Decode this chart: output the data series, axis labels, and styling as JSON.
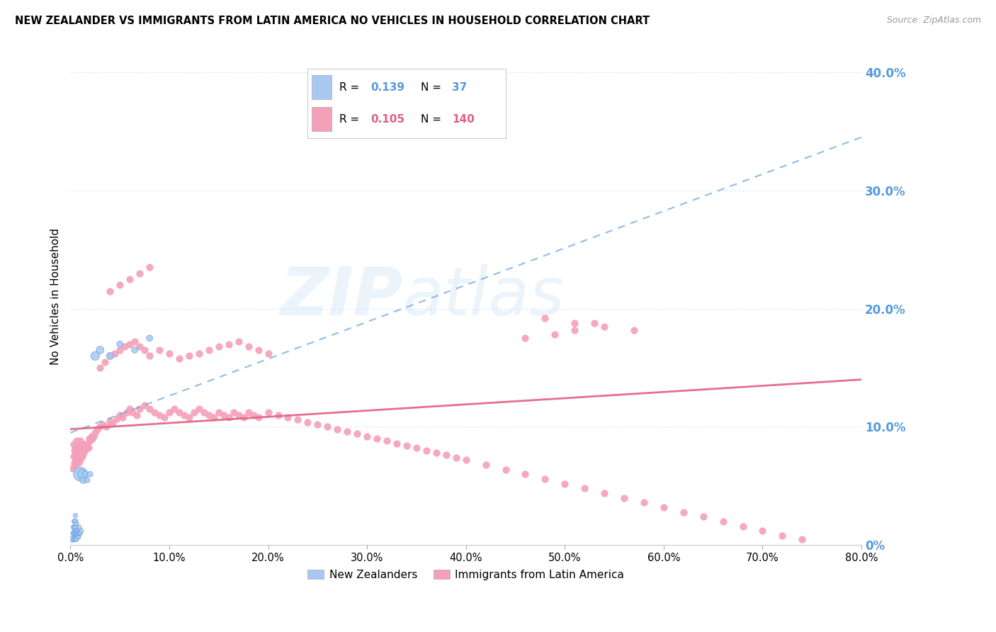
{
  "title": "NEW ZEALANDER VS IMMIGRANTS FROM LATIN AMERICA NO VEHICLES IN HOUSEHOLD CORRELATION CHART",
  "source": "Source: ZipAtlas.com",
  "ylabel": "No Vehicles in Household",
  "ytick_labels": [
    "0%",
    "10.0%",
    "20.0%",
    "30.0%",
    "40.0%"
  ],
  "ytick_values": [
    0.0,
    0.1,
    0.2,
    0.3,
    0.4
  ],
  "xlim": [
    0.0,
    0.8
  ],
  "ylim": [
    0.0,
    0.42
  ],
  "r_nz": 0.139,
  "n_nz": 37,
  "r_la": 0.105,
  "n_la": 140,
  "color_nz": "#a8c8f0",
  "color_la": "#f4a0b8",
  "color_nz_dark": "#5599dd",
  "color_la_dark": "#e06080",
  "color_axis_blue": "#5599dd",
  "background_color": "#ffffff",
  "grid_color": "#ddeeff",
  "watermark_zip": "ZIP",
  "watermark_atlas": "atlas",
  "legend_label_nz": "New Zealanders",
  "legend_label_la": "Immigrants from Latin America",
  "nz_trend_x": [
    0.0,
    0.8
  ],
  "nz_trend_y": [
    0.095,
    0.345
  ],
  "la_trend_x": [
    0.0,
    0.8
  ],
  "la_trend_y": [
    0.098,
    0.14
  ],
  "nz_x": [
    0.002,
    0.003,
    0.003,
    0.004,
    0.004,
    0.004,
    0.004,
    0.005,
    0.005,
    0.005,
    0.005,
    0.005,
    0.005,
    0.006,
    0.006,
    0.006,
    0.006,
    0.007,
    0.007,
    0.008,
    0.008,
    0.009,
    0.009,
    0.01,
    0.01,
    0.011,
    0.012,
    0.013,
    0.015,
    0.017,
    0.02,
    0.025,
    0.03,
    0.04,
    0.05,
    0.065,
    0.08
  ],
  "nz_y": [
    0.005,
    0.01,
    0.015,
    0.005,
    0.01,
    0.015,
    0.02,
    0.005,
    0.01,
    0.012,
    0.015,
    0.02,
    0.025,
    0.005,
    0.008,
    0.012,
    0.018,
    0.008,
    0.012,
    0.007,
    0.01,
    0.01,
    0.015,
    0.01,
    0.06,
    0.012,
    0.06,
    0.055,
    0.06,
    0.055,
    0.06,
    0.16,
    0.165,
    0.16,
    0.17,
    0.165,
    0.175
  ],
  "nz_size": [
    40,
    30,
    25,
    30,
    25,
    20,
    25,
    30,
    25,
    20,
    25,
    30,
    20,
    25,
    20,
    20,
    20,
    20,
    20,
    25,
    25,
    20,
    20,
    20,
    200,
    20,
    100,
    50,
    40,
    30,
    30,
    80,
    60,
    50,
    40,
    40,
    40
  ],
  "la_x": [
    0.002,
    0.003,
    0.003,
    0.004,
    0.004,
    0.005,
    0.005,
    0.005,
    0.006,
    0.006,
    0.006,
    0.007,
    0.007,
    0.008,
    0.008,
    0.008,
    0.009,
    0.009,
    0.01,
    0.01,
    0.01,
    0.011,
    0.011,
    0.012,
    0.012,
    0.013,
    0.013,
    0.014,
    0.015,
    0.016,
    0.017,
    0.018,
    0.019,
    0.02,
    0.021,
    0.022,
    0.023,
    0.025,
    0.027,
    0.03,
    0.033,
    0.036,
    0.04,
    0.043,
    0.047,
    0.05,
    0.053,
    0.057,
    0.06,
    0.063,
    0.067,
    0.07,
    0.075,
    0.08,
    0.085,
    0.09,
    0.095,
    0.1,
    0.105,
    0.11,
    0.115,
    0.12,
    0.125,
    0.13,
    0.135,
    0.14,
    0.145,
    0.15,
    0.155,
    0.16,
    0.165,
    0.17,
    0.175,
    0.18,
    0.185,
    0.19,
    0.2,
    0.21,
    0.22,
    0.23,
    0.24,
    0.25,
    0.26,
    0.27,
    0.28,
    0.29,
    0.3,
    0.31,
    0.32,
    0.33,
    0.34,
    0.35,
    0.36,
    0.37,
    0.38,
    0.39,
    0.4,
    0.42,
    0.44,
    0.46,
    0.48,
    0.5,
    0.52,
    0.54,
    0.56,
    0.58,
    0.6,
    0.62,
    0.64,
    0.66,
    0.68,
    0.7,
    0.72,
    0.74,
    0.03,
    0.035,
    0.04,
    0.045,
    0.05,
    0.055,
    0.06,
    0.065,
    0.07,
    0.075,
    0.08,
    0.09,
    0.1,
    0.11,
    0.12,
    0.13,
    0.14,
    0.15,
    0.16,
    0.17,
    0.18,
    0.19,
    0.2,
    0.04,
    0.05,
    0.06,
    0.07,
    0.08,
    0.46,
    0.49,
    0.51,
    0.53,
    0.48,
    0.51,
    0.54,
    0.57
  ],
  "la_y": [
    0.065,
    0.075,
    0.085,
    0.07,
    0.08,
    0.068,
    0.075,
    0.082,
    0.072,
    0.08,
    0.088,
    0.075,
    0.082,
    0.07,
    0.078,
    0.085,
    0.074,
    0.082,
    0.072,
    0.08,
    0.088,
    0.075,
    0.082,
    0.075,
    0.082,
    0.078,
    0.085,
    0.08,
    0.085,
    0.082,
    0.085,
    0.082,
    0.09,
    0.088,
    0.092,
    0.09,
    0.092,
    0.095,
    0.098,
    0.1,
    0.102,
    0.1,
    0.105,
    0.103,
    0.107,
    0.11,
    0.108,
    0.112,
    0.115,
    0.112,
    0.11,
    0.115,
    0.118,
    0.115,
    0.112,
    0.11,
    0.108,
    0.112,
    0.115,
    0.112,
    0.11,
    0.108,
    0.112,
    0.115,
    0.112,
    0.11,
    0.108,
    0.112,
    0.11,
    0.108,
    0.112,
    0.11,
    0.108,
    0.112,
    0.11,
    0.108,
    0.112,
    0.11,
    0.108,
    0.106,
    0.104,
    0.102,
    0.1,
    0.098,
    0.096,
    0.094,
    0.092,
    0.09,
    0.088,
    0.086,
    0.084,
    0.082,
    0.08,
    0.078,
    0.076,
    0.074,
    0.072,
    0.068,
    0.064,
    0.06,
    0.056,
    0.052,
    0.048,
    0.044,
    0.04,
    0.036,
    0.032,
    0.028,
    0.024,
    0.02,
    0.016,
    0.012,
    0.008,
    0.005,
    0.15,
    0.155,
    0.16,
    0.162,
    0.165,
    0.168,
    0.17,
    0.172,
    0.168,
    0.165,
    0.16,
    0.165,
    0.162,
    0.158,
    0.16,
    0.162,
    0.165,
    0.168,
    0.17,
    0.172,
    0.168,
    0.165,
    0.162,
    0.215,
    0.22,
    0.225,
    0.23,
    0.235,
    0.175,
    0.178,
    0.182,
    0.188,
    0.192,
    0.188,
    0.185,
    0.182
  ]
}
